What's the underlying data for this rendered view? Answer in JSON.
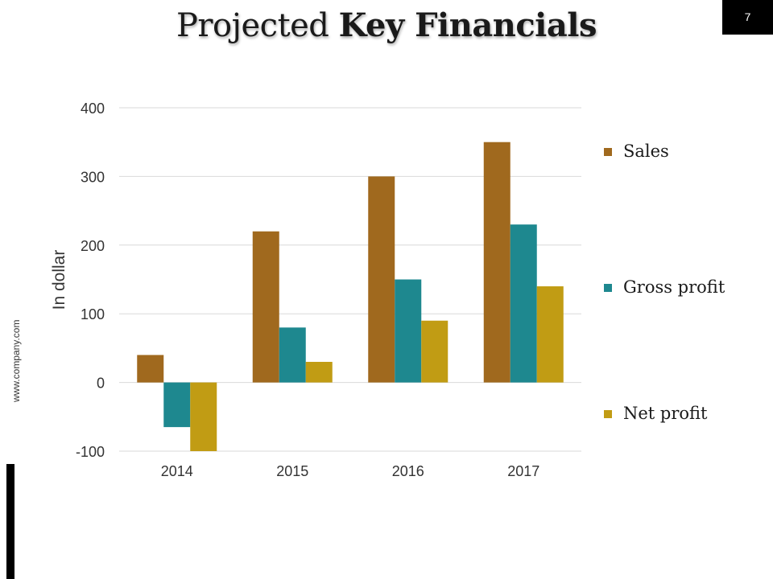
{
  "slide": {
    "title_regular": "Projected ",
    "title_bold": "Key Financials",
    "page_number": "7",
    "website": "www.company.com"
  },
  "colors": {
    "sales": "#A0691E",
    "gross_profit": "#1E888F",
    "net_profit": "#C19C14",
    "grid": "#d9d9d9",
    "axis_text": "#333333"
  },
  "chart_data": {
    "type": "bar",
    "categories": [
      "2014",
      "2015",
      "2016",
      "2017"
    ],
    "series": [
      {
        "name": "Sales",
        "values": [
          40,
          220,
          300,
          350
        ]
      },
      {
        "name": "Gross profit",
        "values": [
          -65,
          80,
          150,
          230
        ]
      },
      {
        "name": "Net profit",
        "values": [
          -100,
          30,
          90,
          140
        ]
      }
    ],
    "title": "",
    "xlabel": "",
    "ylabel": "In dollar",
    "ylim": [
      -100,
      400
    ],
    "yticks": [
      -100,
      0,
      100,
      200,
      300,
      400
    ],
    "grid": true,
    "legend_position": "right"
  }
}
